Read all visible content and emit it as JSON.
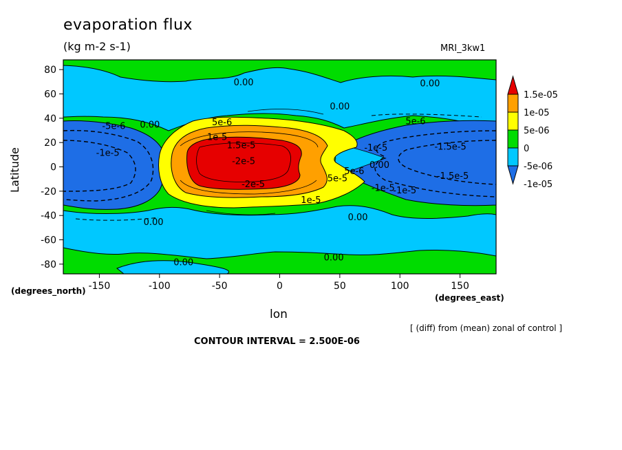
{
  "chart_data": {
    "type": "heatmap",
    "title": "evaporation flux",
    "units": "(kg m-2 s-1)",
    "model": "MRI_3kw1",
    "xlabel": "lon",
    "ylabel": "Latitude",
    "x_unit_note": "(degrees_east)",
    "y_unit_note": "(degrees_north)",
    "xlim": [
      -180,
      180
    ],
    "ylim": [
      -88,
      88
    ],
    "x_ticks": [
      -150,
      -100,
      -50,
      0,
      50,
      100,
      150
    ],
    "y_ticks": [
      -80,
      -60,
      -40,
      -20,
      0,
      20,
      40,
      60,
      80
    ],
    "colorbar": {
      "labels": [
        "1.5e-05",
        "1e-05",
        "5e-06",
        "0",
        "-5e-06",
        "-1e-05"
      ],
      "levels": [
        -1e-05,
        -5e-06,
        0,
        5e-06,
        1e-05,
        1.5e-05
      ],
      "colors": [
        "#1e6ee6",
        "#00c8ff",
        "#00dc00",
        "#ffff00",
        "#ffa000",
        "#e60000"
      ]
    },
    "contour_interval": "CONTOUR INTERVAL = 2.500E-06",
    "note": "[ (diff) from (mean) zonal of control ]",
    "contour_labels": [
      {
        "text": "0.00",
        "lon": -30,
        "lat": 70
      },
      {
        "text": "0.00",
        "lon": 125,
        "lat": 69
      },
      {
        "text": "0.00",
        "lon": 50,
        "lat": 50
      },
      {
        "text": "0.00",
        "lon": -108,
        "lat": 35
      },
      {
        "text": "0.00",
        "lon": 83,
        "lat": 2
      },
      {
        "text": "0.00",
        "lon": -105,
        "lat": -45
      },
      {
        "text": "0.00",
        "lon": 65,
        "lat": -41
      },
      {
        "text": "0.00",
        "lon": -80,
        "lat": -78
      },
      {
        "text": "0.00",
        "lon": 45,
        "lat": -74
      },
      {
        "text": "5e-6",
        "lon": -48,
        "lat": 37
      },
      {
        "text": "5e-6",
        "lon": 113,
        "lat": 38
      },
      {
        "text": "-5e-6",
        "lon": -138,
        "lat": 34
      },
      {
        "text": "1e-5",
        "lon": -52,
        "lat": 25
      },
      {
        "text": "1.5e-5",
        "lon": -32,
        "lat": 18
      },
      {
        "text": "-2e-5",
        "lon": -30,
        "lat": 5
      },
      {
        "text": "-2e-5",
        "lon": -22,
        "lat": -14
      },
      {
        "text": "1e-5",
        "lon": 26,
        "lat": -27
      },
      {
        "text": "-1e-5",
        "lon": -143,
        "lat": 12
      },
      {
        "text": "-1e-5",
        "lon": 80,
        "lat": 16
      },
      {
        "text": "-1.5e-5",
        "lon": 142,
        "lat": 17
      },
      {
        "text": "-1.5e-5",
        "lon": 144,
        "lat": -7
      },
      {
        "text": "5e-5",
        "lon": 48,
        "lat": -9
      },
      {
        "text": "-1e-5",
        "lon": 86,
        "lat": -17
      },
      {
        "text": "5e-6",
        "lon": 62,
        "lat": -3
      },
      {
        "text": "-1e-5",
        "lon": 104,
        "lat": -19
      }
    ]
  }
}
